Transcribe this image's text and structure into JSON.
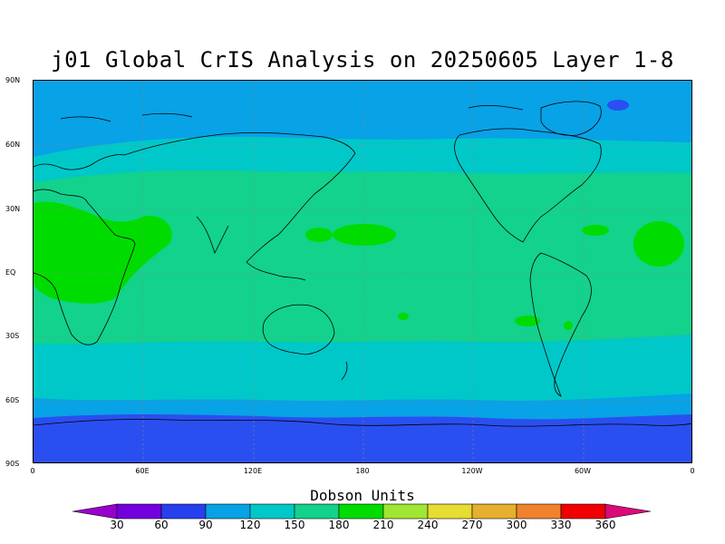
{
  "title": "j01 Global CrIS Analysis on 20250605 Layer 1-8",
  "units": "Dobson Units",
  "lat_labels": [
    "90N",
    "60N",
    "30N",
    "EQ",
    "30S",
    "60S",
    "90S"
  ],
  "lon_labels": [
    "0",
    "60E",
    "120E",
    "180",
    "120W",
    "60W",
    "0"
  ],
  "colorbar": {
    "ticks": [
      "30",
      "60",
      "90",
      "120",
      "150",
      "180",
      "210",
      "240",
      "270",
      "300",
      "330",
      "360"
    ],
    "colors": [
      "#9a00cc",
      "#7300dc",
      "#2640ee",
      "#07a2e6",
      "#00c8c8",
      "#12d28c",
      "#00dc00",
      "#a0e632",
      "#e6dc32",
      "#e6af2d",
      "#f0822d",
      "#f00000",
      "#dc0a78"
    ]
  },
  "map_colors": {
    "band_90": "#2a4ff0",
    "band_120": "#08a2e6",
    "band_150": "#00c8c8",
    "band_180": "#12d28c",
    "band_210": "#00dc00",
    "coastline": "#000000"
  }
}
